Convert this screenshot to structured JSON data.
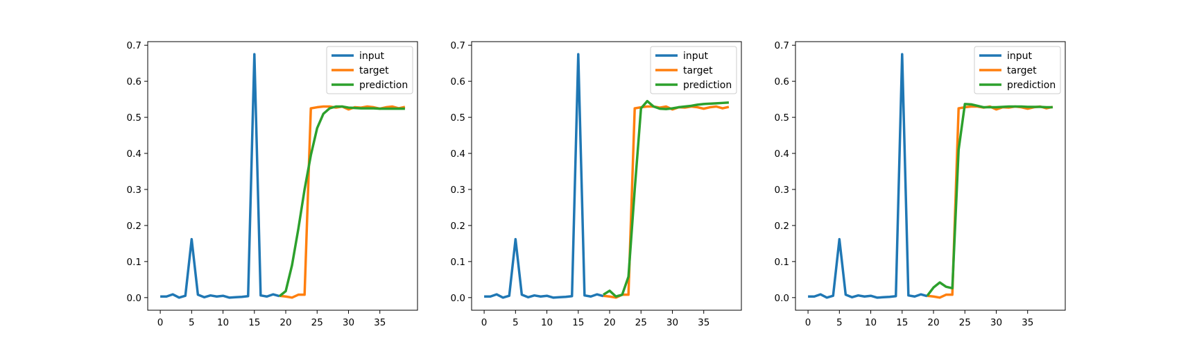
{
  "chart_data": [
    {
      "type": "line",
      "xlim": [
        -2,
        41
      ],
      "ylim": [
        -0.035,
        0.71
      ],
      "xticks": [
        0,
        5,
        10,
        15,
        20,
        25,
        30,
        35
      ],
      "yticks": [
        0.0,
        0.1,
        0.2,
        0.3,
        0.4,
        0.5,
        0.6,
        0.7
      ],
      "legend": "upper right",
      "grid": false,
      "series": [
        {
          "name": "input",
          "color": "#1f77b4",
          "x": [
            0,
            1,
            2,
            3,
            4,
            5,
            6,
            7,
            8,
            9,
            10,
            11,
            12,
            13,
            14,
            15,
            16,
            17,
            18,
            19
          ],
          "y": [
            0.003,
            0.003,
            0.009,
            0.0,
            0.005,
            0.162,
            0.008,
            0.001,
            0.006,
            0.003,
            0.005,
            0.0,
            0.001,
            0.002,
            0.004,
            0.675,
            0.006,
            0.003,
            0.009,
            0.004
          ]
        },
        {
          "name": "target",
          "color": "#ff7f0e",
          "x": [
            19,
            20,
            21,
            22,
            23,
            24,
            25,
            26,
            27,
            28,
            29,
            30,
            31,
            32,
            33,
            34,
            35,
            36,
            37,
            38,
            39
          ],
          "y": [
            0.005,
            0.003,
            0.0,
            0.008,
            0.008,
            0.525,
            0.528,
            0.53,
            0.53,
            0.527,
            0.53,
            0.522,
            0.528,
            0.527,
            0.53,
            0.528,
            0.524,
            0.528,
            0.53,
            0.525,
            0.529
          ]
        },
        {
          "name": "prediction",
          "color": "#2ca02c",
          "x": [
            19,
            20,
            21,
            22,
            23,
            24,
            25,
            26,
            27,
            28,
            29,
            30,
            31,
            32,
            33,
            34,
            35,
            36,
            37,
            38,
            39
          ],
          "y": [
            0.004,
            0.018,
            0.09,
            0.19,
            0.3,
            0.395,
            0.47,
            0.51,
            0.525,
            0.53,
            0.53,
            0.527,
            0.526,
            0.525,
            0.525,
            0.525,
            0.524,
            0.524,
            0.524,
            0.524,
            0.524
          ]
        }
      ]
    },
    {
      "type": "line",
      "xlim": [
        -2,
        41
      ],
      "ylim": [
        -0.035,
        0.71
      ],
      "xticks": [
        0,
        5,
        10,
        15,
        20,
        25,
        30,
        35
      ],
      "yticks": [
        0.0,
        0.1,
        0.2,
        0.3,
        0.4,
        0.5,
        0.6,
        0.7
      ],
      "legend": "upper right",
      "grid": false,
      "series": [
        {
          "name": "input",
          "color": "#1f77b4",
          "x": [
            0,
            1,
            2,
            3,
            4,
            5,
            6,
            7,
            8,
            9,
            10,
            11,
            12,
            13,
            14,
            15,
            16,
            17,
            18,
            19
          ],
          "y": [
            0.003,
            0.003,
            0.009,
            0.0,
            0.005,
            0.162,
            0.008,
            0.001,
            0.006,
            0.003,
            0.005,
            0.0,
            0.001,
            0.002,
            0.004,
            0.675,
            0.006,
            0.003,
            0.009,
            0.004
          ]
        },
        {
          "name": "target",
          "color": "#ff7f0e",
          "x": [
            19,
            20,
            21,
            22,
            23,
            24,
            25,
            26,
            27,
            28,
            29,
            30,
            31,
            32,
            33,
            34,
            35,
            36,
            37,
            38,
            39
          ],
          "y": [
            0.005,
            0.003,
            0.0,
            0.008,
            0.008,
            0.525,
            0.528,
            0.53,
            0.53,
            0.527,
            0.53,
            0.522,
            0.528,
            0.527,
            0.53,
            0.528,
            0.524,
            0.528,
            0.53,
            0.525,
            0.529
          ]
        },
        {
          "name": "prediction",
          "color": "#2ca02c",
          "x": [
            19,
            20,
            21,
            22,
            23,
            24,
            25,
            26,
            27,
            28,
            29,
            30,
            31,
            32,
            33,
            34,
            35,
            36,
            37,
            38,
            39
          ],
          "y": [
            0.008,
            0.019,
            0.003,
            0.008,
            0.058,
            0.3,
            0.525,
            0.545,
            0.53,
            0.524,
            0.523,
            0.525,
            0.528,
            0.53,
            0.532,
            0.535,
            0.537,
            0.538,
            0.539,
            0.54,
            0.541
          ]
        }
      ]
    },
    {
      "type": "line",
      "xlim": [
        -2,
        41
      ],
      "ylim": [
        -0.035,
        0.71
      ],
      "xticks": [
        0,
        5,
        10,
        15,
        20,
        25,
        30,
        35
      ],
      "yticks": [
        0.0,
        0.1,
        0.2,
        0.3,
        0.4,
        0.5,
        0.6,
        0.7
      ],
      "legend": "upper right",
      "grid": false,
      "series": [
        {
          "name": "input",
          "color": "#1f77b4",
          "x": [
            0,
            1,
            2,
            3,
            4,
            5,
            6,
            7,
            8,
            9,
            10,
            11,
            12,
            13,
            14,
            15,
            16,
            17,
            18,
            19
          ],
          "y": [
            0.003,
            0.003,
            0.009,
            0.0,
            0.005,
            0.162,
            0.008,
            0.001,
            0.006,
            0.003,
            0.005,
            0.0,
            0.001,
            0.002,
            0.004,
            0.675,
            0.006,
            0.003,
            0.009,
            0.004
          ]
        },
        {
          "name": "target",
          "color": "#ff7f0e",
          "x": [
            19,
            20,
            21,
            22,
            23,
            24,
            25,
            26,
            27,
            28,
            29,
            30,
            31,
            32,
            33,
            34,
            35,
            36,
            37,
            38,
            39
          ],
          "y": [
            0.005,
            0.003,
            0.0,
            0.008,
            0.008,
            0.525,
            0.528,
            0.53,
            0.53,
            0.527,
            0.53,
            0.522,
            0.528,
            0.527,
            0.53,
            0.528,
            0.524,
            0.528,
            0.53,
            0.525,
            0.529
          ]
        },
        {
          "name": "prediction",
          "color": "#2ca02c",
          "x": [
            19,
            20,
            21,
            22,
            23,
            24,
            25,
            26,
            27,
            28,
            29,
            30,
            31,
            32,
            33,
            34,
            35,
            36,
            37,
            38,
            39
          ],
          "y": [
            0.005,
            0.028,
            0.042,
            0.03,
            0.026,
            0.41,
            0.537,
            0.536,
            0.532,
            0.528,
            0.528,
            0.528,
            0.529,
            0.53,
            0.53,
            0.53,
            0.529,
            0.529,
            0.529,
            0.528,
            0.528
          ]
        }
      ]
    }
  ]
}
